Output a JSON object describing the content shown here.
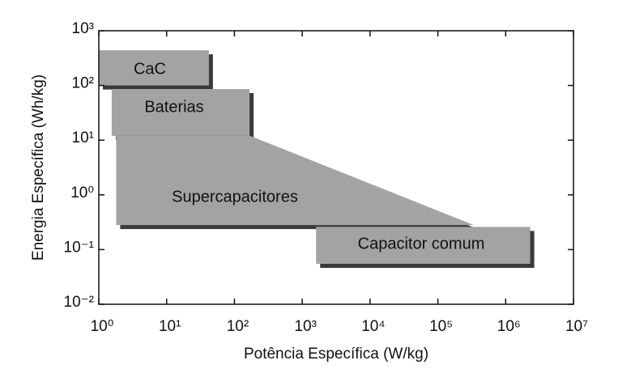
{
  "chart_data": {
    "type": "region",
    "xlabel": "Potência Específica (W/kg)",
    "ylabel": "Energia Específica (Wh/kg)",
    "xscale": "log",
    "yscale": "log",
    "xlim": [
      1,
      10000000
    ],
    "ylim": [
      0.01,
      1000
    ],
    "xticks": [
      {
        "value": 1,
        "label": "10⁰"
      },
      {
        "value": 10,
        "label": "10¹"
      },
      {
        "value": 100,
        "label": "10²"
      },
      {
        "value": 1000,
        "label": "10³"
      },
      {
        "value": 10000,
        "label": "10⁴"
      },
      {
        "value": 100000,
        "label": "10⁵"
      },
      {
        "value": 1000000,
        "label": "10⁶"
      },
      {
        "value": 10000000,
        "label": "10⁷"
      }
    ],
    "yticks": [
      {
        "value": 0.01,
        "label": "10⁻²"
      },
      {
        "value": 0.1,
        "label": "10⁻¹"
      },
      {
        "value": 1,
        "label": "10⁰"
      },
      {
        "value": 10,
        "label": "10¹"
      },
      {
        "value": 100,
        "label": "10²"
      },
      {
        "value": 1000,
        "label": "10³"
      }
    ],
    "color": "#a3a3a3",
    "regions": [
      {
        "name": "CaC",
        "x": [
          1,
          42,
          42,
          1
        ],
        "y": [
          440,
          440,
          100,
          100
        ]
      },
      {
        "name": "Baterias",
        "x": [
          1.55,
          167,
          167,
          1.55
        ],
        "y": [
          86,
          86,
          12,
          12
        ]
      },
      {
        "name": "Supercapacitores",
        "x": [
          1.8,
          170,
          340000,
          1.8
        ],
        "y": [
          12,
          12,
          0.28,
          0.28
        ]
      },
      {
        "name": "Capacitor comum",
        "x": [
          1600,
          2300000,
          2300000,
          1600
        ],
        "y": [
          0.26,
          0.26,
          0.055,
          0.055
        ]
      }
    ]
  }
}
